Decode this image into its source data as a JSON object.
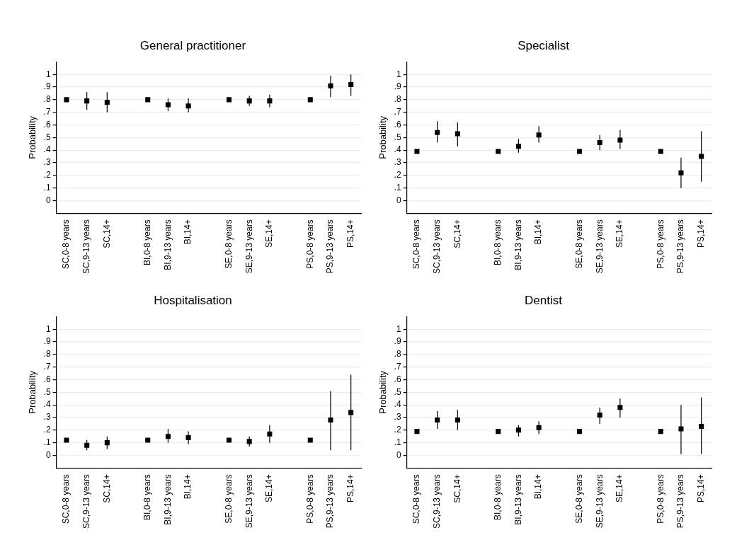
{
  "chart_data": [
    {
      "type": "scatter",
      "title": "General practitioner",
      "ylabel": "Probability",
      "categories": [
        "SC,0-8 years",
        "SC,9-13 years",
        "SC,14+",
        null,
        "BI,0-8 years",
        "BI,9-13 years",
        "BI,14+",
        null,
        "SE,0-8 years",
        "SE,9-13 years",
        "SE,14+",
        null,
        "PS,0-8 years",
        "PS,9-13 years",
        "PS,14+"
      ],
      "values": [
        0.8,
        0.79,
        0.78,
        null,
        0.8,
        0.76,
        0.75,
        null,
        0.8,
        0.79,
        0.79,
        null,
        0.8,
        0.91,
        0.92
      ],
      "errors": [
        null,
        [
          0.72,
          0.86
        ],
        [
          0.7,
          0.86
        ],
        null,
        null,
        [
          0.71,
          0.81
        ],
        [
          0.7,
          0.81
        ],
        null,
        null,
        [
          0.75,
          0.83
        ],
        [
          0.74,
          0.84
        ],
        null,
        null,
        [
          0.82,
          0.99
        ],
        [
          0.83,
          1.0
        ]
      ],
      "color": "#000000",
      "marker": "square",
      "ylim": [
        -0.1,
        1.1
      ],
      "yticks": [
        {
          "value": 0,
          "label": "0"
        },
        {
          "value": 0.1,
          "label": ".1"
        },
        {
          "value": 0.2,
          "label": ".2"
        },
        {
          "value": 0.3,
          "label": ".3"
        },
        {
          "value": 0.4,
          "label": ".4"
        },
        {
          "value": 0.5,
          "label": ".5"
        },
        {
          "value": 0.6,
          "label": ".6"
        },
        {
          "value": 0.7,
          "label": ".7"
        },
        {
          "value": 0.8,
          "label": ".8"
        },
        {
          "value": 0.9,
          "label": ".9"
        },
        {
          "value": 1,
          "label": "1"
        }
      ],
      "grid": "y",
      "legend": false
    },
    {
      "type": "scatter",
      "title": "Specialist",
      "ylabel": "Probability",
      "categories": [
        "SC,0-8 years",
        "SC,9-13 years",
        "SC,14+",
        null,
        "BI,0-8 years",
        "BI,9-13 years",
        "BI,14+",
        null,
        "SE,0-8 years",
        "SE,9-13 years",
        "SE,14+",
        null,
        "PS,0-8 years",
        "PS,9-13 years",
        "PS,14+"
      ],
      "values": [
        0.39,
        0.54,
        0.53,
        null,
        0.39,
        0.43,
        0.52,
        null,
        0.39,
        0.46,
        0.48,
        null,
        0.39,
        0.22,
        0.35
      ],
      "errors": [
        null,
        [
          0.46,
          0.63
        ],
        [
          0.43,
          0.62
        ],
        null,
        null,
        [
          0.38,
          0.49
        ],
        [
          0.46,
          0.59
        ],
        null,
        null,
        [
          0.4,
          0.52
        ],
        [
          0.41,
          0.56
        ],
        null,
        null,
        [
          0.1,
          0.34
        ],
        [
          0.15,
          0.55
        ]
      ],
      "color": "#000000",
      "marker": "square",
      "ylim": [
        -0.1,
        1.1
      ],
      "yticks": [
        {
          "value": 0,
          "label": "0"
        },
        {
          "value": 0.1,
          "label": ".1"
        },
        {
          "value": 0.2,
          "label": ".2"
        },
        {
          "value": 0.3,
          "label": ".3"
        },
        {
          "value": 0.4,
          "label": ".4"
        },
        {
          "value": 0.5,
          "label": ".5"
        },
        {
          "value": 0.6,
          "label": ".6"
        },
        {
          "value": 0.7,
          "label": ".7"
        },
        {
          "value": 0.8,
          "label": ".8"
        },
        {
          "value": 0.9,
          "label": ".9"
        },
        {
          "value": 1,
          "label": "1"
        }
      ],
      "grid": "y",
      "legend": false
    },
    {
      "type": "scatter",
      "title": "Hospitalisation",
      "ylabel": "Probability",
      "categories": [
        "SC,0-8 years",
        "SC,9-13 years",
        "SC,14+",
        null,
        "BI,0-8 years",
        "BI,9-13 years",
        "BI,14+",
        null,
        "SE,0-8 years",
        "SE,9-13 years",
        "SE,14+",
        null,
        "PS,0-8 years",
        "PS,9-13 years",
        "PS,14+"
      ],
      "values": [
        0.12,
        0.08,
        0.1,
        null,
        0.12,
        0.15,
        0.14,
        null,
        0.12,
        0.11,
        0.17,
        null,
        0.12,
        0.28,
        0.34
      ],
      "errors": [
        null,
        [
          0.04,
          0.12
        ],
        [
          0.05,
          0.15
        ],
        null,
        null,
        [
          0.1,
          0.21
        ],
        [
          0.09,
          0.19
        ],
        null,
        null,
        [
          0.07,
          0.15
        ],
        [
          0.1,
          0.24
        ],
        null,
        null,
        [
          0.04,
          0.51
        ],
        [
          0.04,
          0.64
        ]
      ],
      "color": "#000000",
      "marker": "square",
      "ylim": [
        -0.1,
        1.1
      ],
      "yticks": [
        {
          "value": 0,
          "label": "0"
        },
        {
          "value": 0.1,
          "label": ".1"
        },
        {
          "value": 0.2,
          "label": ".2"
        },
        {
          "value": 0.3,
          "label": ".3"
        },
        {
          "value": 0.4,
          "label": ".4"
        },
        {
          "value": 0.5,
          "label": ".5"
        },
        {
          "value": 0.6,
          "label": ".6"
        },
        {
          "value": 0.7,
          "label": ".7"
        },
        {
          "value": 0.8,
          "label": ".8"
        },
        {
          "value": 0.9,
          "label": ".9"
        },
        {
          "value": 1,
          "label": "1"
        }
      ],
      "grid": "y",
      "legend": false
    },
    {
      "type": "scatter",
      "title": "Dentist",
      "ylabel": "Probability",
      "categories": [
        "SC,0-8 years",
        "SC,9-13 years",
        "SC,14+",
        null,
        "BI,0-8 years",
        "BI,9-13 years",
        "BI,14+",
        null,
        "SE,0-8 years",
        "SE,9-13 years",
        "SE,14+",
        null,
        "PS,0-8 years",
        "PS,9-13 years",
        "PS,14+"
      ],
      "values": [
        0.19,
        0.28,
        0.28,
        null,
        0.19,
        0.2,
        0.22,
        null,
        0.19,
        0.32,
        0.38,
        null,
        0.19,
        0.21,
        0.23
      ],
      "errors": [
        null,
        [
          0.21,
          0.35
        ],
        [
          0.2,
          0.36
        ],
        null,
        null,
        [
          0.15,
          0.24
        ],
        [
          0.17,
          0.27
        ],
        null,
        null,
        [
          0.25,
          0.38
        ],
        [
          0.3,
          0.45
        ],
        null,
        null,
        [
          0.01,
          0.4
        ],
        [
          0.01,
          0.46
        ]
      ],
      "color": "#000000",
      "marker": "square",
      "ylim": [
        -0.1,
        1.1
      ],
      "yticks": [
        {
          "value": 0,
          "label": "0"
        },
        {
          "value": 0.1,
          "label": ".1"
        },
        {
          "value": 0.2,
          "label": ".2"
        },
        {
          "value": 0.3,
          "label": ".3"
        },
        {
          "value": 0.4,
          "label": ".4"
        },
        {
          "value": 0.5,
          "label": ".5"
        },
        {
          "value": 0.6,
          "label": ".6"
        },
        {
          "value": 0.7,
          "label": ".7"
        },
        {
          "value": 0.8,
          "label": ".8"
        },
        {
          "value": 0.9,
          "label": ".9"
        },
        {
          "value": 1,
          "label": "1"
        }
      ],
      "grid": "y",
      "legend": false
    }
  ]
}
